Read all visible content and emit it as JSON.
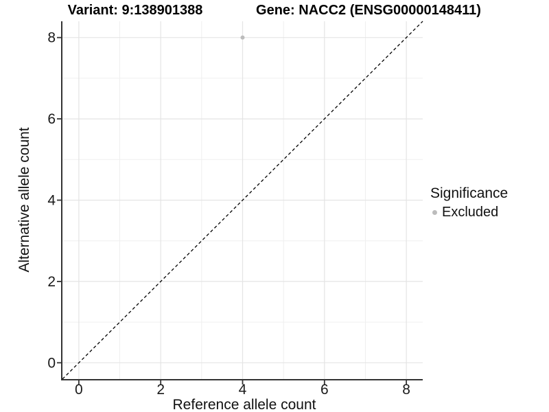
{
  "chart_data": {
    "type": "scatter",
    "titles": [
      "Variant: 9:138901388",
      "Gene: NACC2 (ENSG00000148411)"
    ],
    "xlabel": "Reference allele count",
    "ylabel": "Alternative allele count",
    "xlim": [
      -0.4,
      8.4
    ],
    "ylim": [
      -0.4,
      8.4
    ],
    "x_ticks": [
      0,
      2,
      4,
      6,
      8
    ],
    "y_ticks": [
      0,
      2,
      4,
      6,
      8
    ],
    "x_minor_ticks": [
      1,
      3,
      5,
      7
    ],
    "y_minor_ticks": [
      1,
      3,
      5,
      7
    ],
    "grid": true,
    "legend_position": "right",
    "reference_line": {
      "equation": "y = x",
      "style": "dashed",
      "color": "#000000"
    },
    "series": [
      {
        "name": "Excluded",
        "color": "#bcbcbc",
        "points": [
          {
            "x": 4,
            "y": 8
          }
        ]
      }
    ],
    "legend": {
      "title": "Significance",
      "items": [
        {
          "label": "Excluded",
          "color": "#bcbcbc"
        }
      ]
    }
  },
  "colors": {
    "background": "#ffffff",
    "grid_major": "#e4e4e4",
    "grid_minor": "#efefef",
    "axis_line": "#333333",
    "tick_mark": "#333333",
    "tick_label": "#1a1a1a",
    "title_text": "#000000",
    "point": "#bcbcbc"
  }
}
